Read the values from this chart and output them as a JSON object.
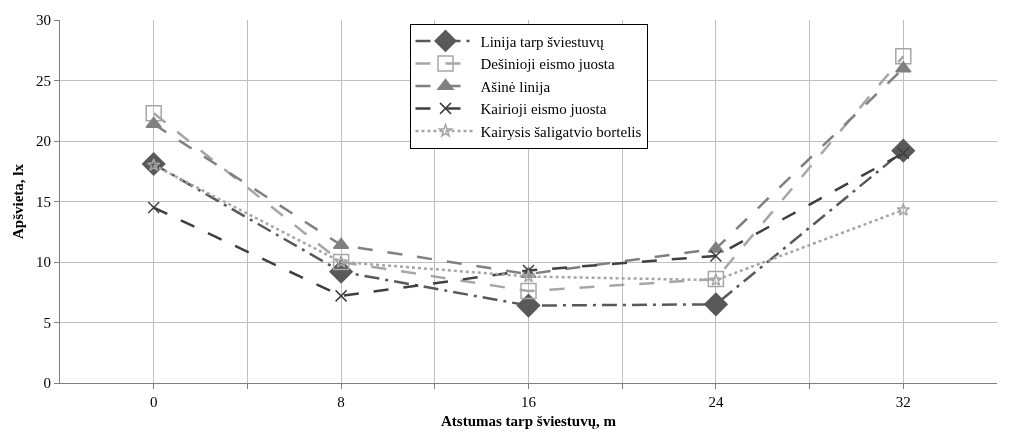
{
  "chart_data": {
    "type": "line",
    "xlabel": "Atstumas tarp šviestuvų, m",
    "ylabel": "Apšvieta, lx",
    "x": [
      0,
      8,
      16,
      24,
      32
    ],
    "xlim": [
      -4,
      36
    ],
    "xticks": [
      0,
      {
        "value": 4,
        "label": null
      },
      8,
      {
        "value": 12,
        "label": null
      },
      16,
      {
        "value": 20,
        "label": null
      },
      24,
      {
        "value": 28,
        "label": null
      },
      32
    ],
    "ylim": [
      0,
      30
    ],
    "yticks": [
      0,
      5,
      10,
      15,
      20,
      25,
      30
    ],
    "grid": true,
    "legend": "top",
    "series": [
      {
        "name": "Linija tarp šviestuvų",
        "color": "#595959",
        "marker": "diamond",
        "line_style": "dashdot",
        "values": [
          18.1,
          9.2,
          6.4,
          6.5,
          19.2
        ]
      },
      {
        "name": "Dešinioji eismo juosta",
        "color": "#a6a6a6",
        "marker": "square",
        "line_style": "dashed",
        "values": [
          22.3,
          10.0,
          7.6,
          8.6,
          27.0
        ]
      },
      {
        "name": "Ašinė linija",
        "color": "#808080",
        "marker": "triangle",
        "line_style": "dashed",
        "values": [
          21.4,
          11.4,
          9.0,
          11.1,
          26.0
        ]
      },
      {
        "name": "Kairioji eismo juosta",
        "color": "#404040",
        "marker": "cross",
        "line_style": "dashed",
        "values": [
          14.5,
          7.2,
          9.3,
          10.5,
          19.0
        ]
      },
      {
        "name": "Kairysis šaligatvio bortelis",
        "color": "#a6a6a6",
        "marker": "star",
        "line_style": "dotted",
        "values": [
          18.0,
          10.0,
          8.8,
          8.5,
          14.3
        ]
      }
    ]
  }
}
